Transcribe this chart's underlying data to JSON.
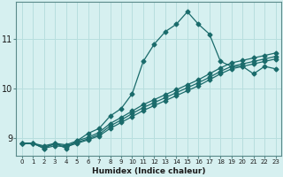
{
  "xlabel": "Humidex (Indice chaleur)",
  "background_color": "#d6f0f0",
  "line_color": "#1a6b6b",
  "grid_color": "#b8dede",
  "xlim": [
    -0.5,
    23.5
  ],
  "ylim": [
    8.65,
    11.75
  ],
  "yticks": [
    9,
    10,
    11
  ],
  "xticks": [
    0,
    1,
    2,
    3,
    4,
    5,
    6,
    7,
    8,
    9,
    10,
    11,
    12,
    13,
    14,
    15,
    16,
    17,
    18,
    19,
    20,
    21,
    22,
    23
  ],
  "line1_x": [
    0,
    1,
    2,
    3,
    4,
    5,
    6,
    7,
    8,
    9,
    10,
    11,
    12,
    13,
    14,
    15,
    16,
    17,
    18,
    19,
    20,
    21,
    22,
    23
  ],
  "line1_y": [
    8.9,
    8.9,
    8.8,
    8.9,
    8.8,
    8.95,
    9.1,
    9.2,
    9.45,
    9.6,
    9.9,
    10.55,
    10.9,
    11.15,
    11.3,
    11.55,
    11.3,
    11.1,
    10.55,
    10.45,
    10.45,
    10.3,
    10.45,
    10.4
  ],
  "line2_x": [
    0,
    1,
    2,
    3,
    4,
    5,
    6,
    7,
    8,
    9,
    10,
    11,
    12,
    13,
    14,
    15,
    16,
    17,
    18,
    19,
    20,
    21,
    22,
    23
  ],
  "line2_y": [
    8.9,
    8.9,
    8.85,
    8.9,
    8.87,
    8.95,
    9.02,
    9.12,
    9.3,
    9.42,
    9.55,
    9.68,
    9.78,
    9.88,
    9.98,
    10.08,
    10.18,
    10.3,
    10.42,
    10.52,
    10.57,
    10.62,
    10.67,
    10.72
  ],
  "line3_x": [
    0,
    1,
    2,
    3,
    4,
    5,
    6,
    7,
    8,
    9,
    10,
    11,
    12,
    13,
    14,
    15,
    16,
    17,
    18,
    19,
    20,
    21,
    22,
    23
  ],
  "line3_y": [
    8.9,
    8.9,
    8.83,
    8.88,
    8.85,
    8.92,
    8.99,
    9.08,
    9.25,
    9.37,
    9.5,
    9.62,
    9.72,
    9.82,
    9.92,
    10.02,
    10.12,
    10.23,
    10.35,
    10.45,
    10.5,
    10.55,
    10.6,
    10.65
  ],
  "line4_x": [
    0,
    1,
    2,
    3,
    4,
    5,
    6,
    7,
    8,
    9,
    10,
    11,
    12,
    13,
    14,
    15,
    16,
    17,
    18,
    19,
    20,
    21,
    22,
    23
  ],
  "line4_y": [
    8.9,
    8.9,
    8.8,
    8.85,
    8.83,
    8.9,
    8.97,
    9.05,
    9.2,
    9.32,
    9.44,
    9.56,
    9.66,
    9.76,
    9.86,
    9.96,
    10.06,
    10.18,
    10.3,
    10.4,
    10.45,
    10.5,
    10.55,
    10.6
  ]
}
